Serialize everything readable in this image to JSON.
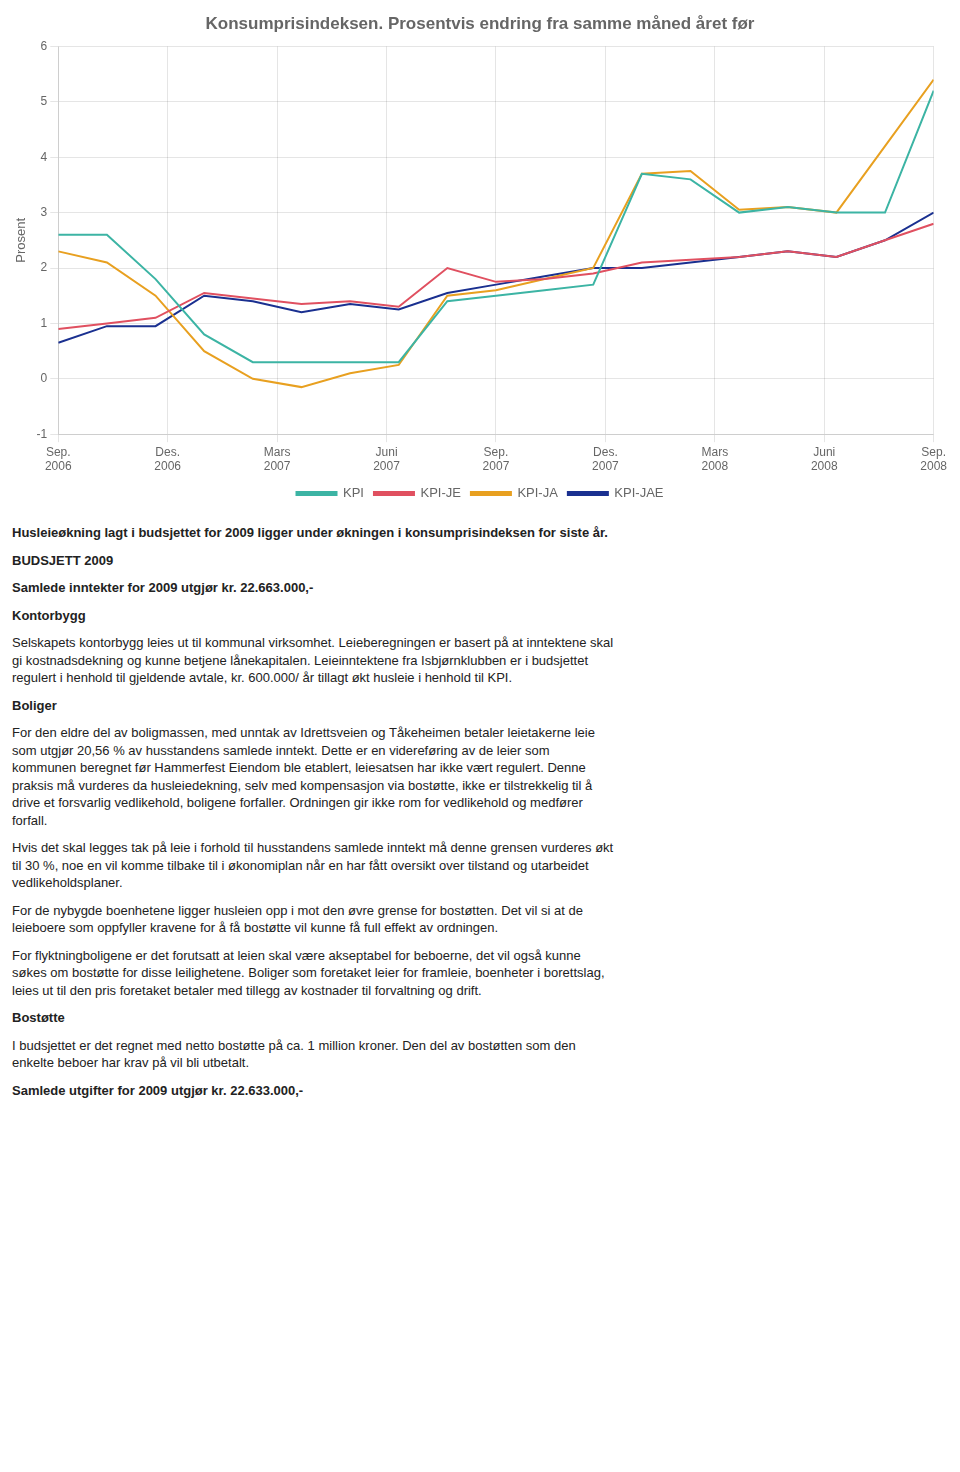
{
  "chart_data": {
    "type": "line",
    "title": "Konsumprisindeksen. Prosentvis endring fra samme måned året før",
    "y_label": "Prosent",
    "x": [
      0,
      1,
      2,
      3,
      4,
      5,
      6,
      7,
      8,
      9,
      10,
      11,
      12,
      13,
      14,
      15,
      16,
      17,
      18
    ],
    "xlim": [
      0,
      18
    ],
    "xticks": [
      {
        "value": 0,
        "label": "Sep.\n2006"
      },
      {
        "value": 2.25,
        "label": "Des.\n2006"
      },
      {
        "value": 4.5,
        "label": "Mars\n2007"
      },
      {
        "value": 6.75,
        "label": "Juni\n2007"
      },
      {
        "value": 9,
        "label": "Sep.\n2007"
      },
      {
        "value": 11.25,
        "label": "Des.\n2007"
      },
      {
        "value": 13.5,
        "label": "Mars\n2008"
      },
      {
        "value": 15.75,
        "label": "Juni\n2008"
      },
      {
        "value": 18,
        "label": "Sep.\n2008"
      }
    ],
    "ylim": [
      -1,
      6
    ],
    "yticks": [
      -1,
      0,
      1,
      2,
      3,
      4,
      5,
      6
    ],
    "grid": true,
    "legend": "bottom",
    "series": [
      {
        "name": "KPI",
        "color": "#3cb4a4",
        "values": [
          2.6,
          2.6,
          1.8,
          0.8,
          0.3,
          0.3,
          0.3,
          0.3,
          1.4,
          1.5,
          1.6,
          1.7,
          3.7,
          3.6,
          3.0,
          3.1,
          3.0,
          3.0,
          5.2
        ]
      },
      {
        "name": "KPI-JE",
        "color": "#e05060",
        "values": [
          0.9,
          1.0,
          1.1,
          1.55,
          1.45,
          1.35,
          1.4,
          1.3,
          2.0,
          1.75,
          1.8,
          1.9,
          2.1,
          2.15,
          2.2,
          2.3,
          2.2,
          2.5,
          2.8
        ]
      },
      {
        "name": "KPI-JA",
        "color": "#e8a020",
        "values": [
          2.3,
          2.1,
          1.5,
          0.5,
          0.0,
          -0.15,
          0.1,
          0.25,
          1.5,
          1.6,
          1.8,
          2.0,
          3.7,
          3.75,
          3.05,
          3.1,
          3.0,
          4.2,
          5.4
        ]
      },
      {
        "name": "KPI-JAE",
        "color": "#1a3090",
        "values": [
          0.65,
          0.95,
          0.95,
          1.5,
          1.4,
          1.2,
          1.35,
          1.25,
          1.55,
          1.7,
          1.85,
          2.0,
          2.0,
          2.1,
          2.2,
          2.3,
          2.2,
          2.5,
          3.0
        ]
      }
    ],
    "annotations": [
      [
        "Husleieøkning lagt i budsjettet for 2009 ligger under økningen i konsumprisindeksen for siste år."
      ],
      [
        "BUDSJETT 2009"
      ],
      [
        "Samlede inntekter for 2009 utgjør kr. 22.663.000,-"
      ],
      [
        "Kontorbygg"
      ],
      [
        "Selskapets kontorbygg leies ut til kommunal virksomhet. Leieberegningen er basert på at inntektene skal",
        "gi kostnadsdekning og kunne betjene lånekapitalen. Leieinntektene fra Isbjørnklubben er i budsjettet",
        "regulert i henhold til gjeldende avtale, kr. 600.000/ år tillagt økt husleie i henhold til KPI."
      ],
      [
        "Boliger"
      ],
      [
        "For den eldre del av boligmassen, med unntak av Idrettsveien og Tåkeheimen betaler leietakerne leie",
        "som utgjør 20,56 % av husstandens samlede inntekt. Dette er en videreføring av de leier som",
        "kommunen beregnet før Hammerfest Eiendom ble etablert, leiesatsen har ikke vært regulert. Denne",
        "praksis må vurderes da husleiedekning, selv med kompensasjon via bostøtte, ikke er tilstrekkelig til å",
        "drive et forsvarlig vedlikehold, boligene forfaller. Ordningen gir ikke rom for vedlikehold og medfører",
        "forfall."
      ],
      [
        "Hvis det skal legges tak på leie i forhold til husstandens samlede inntekt må denne grensen vurderes økt",
        "til 30 %, noe en vil komme tilbake til i økonomiplan når en har fått oversikt over tilstand og utarbeidet",
        "vedlikeholdsplaner."
      ],
      [
        "For de nybygde boenhetene ligger husleien opp i mot den øvre grense for bostøtten. Det vil si at de",
        "leieboere som oppfyller kravene for å få bostøtte vil kunne få full effekt av ordningen."
      ],
      [
        "For flyktningboligene er det forutsatt at leien skal være akseptabel for beboerne, det vil også kunne",
        "søkes om bostøtte for disse leilighetene. Boliger som foretaket leier for framleie, boenheter i borettslag,",
        "leies ut til den pris foretaket betaler med tillegg av kostnader til forvaltning og drift."
      ],
      [
        "Bostøtte"
      ],
      [
        "I budsjettet er det regnet med netto bostøtte på ca. 1 million kroner. Den del av bostøtten som den",
        "enkelte beboer har krav på vil bli utbetalt."
      ],
      [
        "Samlede utgifter for 2009 utgjør kr. 22.633.000,-"
      ]
    ]
  }
}
